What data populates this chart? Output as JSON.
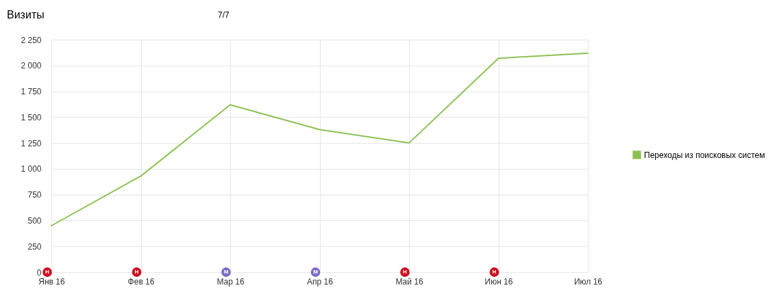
{
  "chart_data": {
    "type": "line",
    "title": "Визиты",
    "categories": [
      "Янв 16",
      "Фев 16",
      "Мар 16",
      "Апр 16",
      "Май 16",
      "Июн 16",
      "Июл 16"
    ],
    "series": [
      {
        "name": "Переходы из поисковых систем",
        "color": "#8cc152",
        "values": [
          450,
          930,
          1620,
          1380,
          1250,
          2070,
          2120
        ]
      }
    ],
    "ylim": [
      0,
      2250
    ],
    "yticks": [
      0,
      250,
      500,
      750,
      {
        "value": 1000,
        "label": "1 000"
      },
      {
        "value": 1250,
        "label": "1 250"
      },
      {
        "value": 1500,
        "label": "1 500"
      },
      {
        "value": 1750,
        "label": "1 750"
      },
      {
        "value": 2000,
        "label": "2 000"
      },
      {
        "value": 2250,
        "label": "2 250"
      }
    ],
    "grid": true,
    "legend": "right",
    "annotations": [
      "7/7",
      "Н",
      "Н",
      "М",
      "М",
      "Н",
      "Н"
    ]
  }
}
